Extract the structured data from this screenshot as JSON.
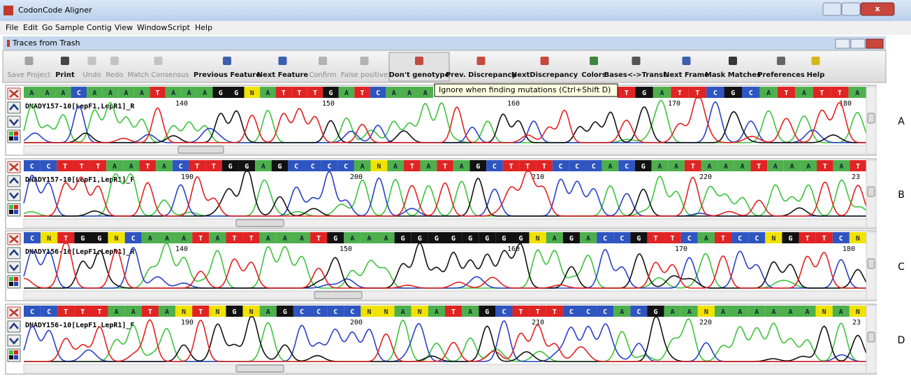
{
  "window": {
    "title": "CodonCode Aligner"
  },
  "menu": [
    "File",
    "Edit",
    "Go",
    "Sample",
    "Contig",
    "View",
    "Window",
    "Script",
    "Help"
  ],
  "document": {
    "title": "Traces from Trash"
  },
  "toolbar": [
    "Save Project",
    "Print",
    "Undo",
    "Redo",
    "Match Consensus",
    "Previous Feature",
    "Next Feature",
    "Confirm",
    "False positive",
    "Don't genotype",
    "Prev. Discrepancy",
    "NextDiscrepancy",
    "Colors",
    "Bases<->Transl.",
    "Next Frame",
    "Mask Matches",
    "Preferences",
    "Help"
  ],
  "tooltip": "Ignore when finding mutations (Ctrl+Shift D)",
  "panels": [
    {
      "letter": "A",
      "read": "DNADY157-10[LepF1,LepR1]_R",
      "bases": [
        "A",
        "A",
        "A",
        "C",
        "A",
        "A",
        "A",
        "A",
        "T",
        "A",
        "A",
        "A",
        "G",
        "G",
        "N",
        "A",
        "T",
        "T",
        "T",
        "G",
        "A",
        "T",
        "C",
        "A",
        "A",
        "A"
      ],
      "bases_right": [
        "T",
        "G",
        "A",
        "T",
        "T",
        "C",
        "G",
        "C",
        "A",
        "T",
        "A",
        "T",
        "T",
        "A"
      ],
      "positions": [
        140,
        150,
        160,
        170,
        180
      ]
    },
    {
      "letter": "B",
      "read": "DNADY157-10[LepF1,LepR1]_F",
      "bases": [
        "C",
        "C",
        "T",
        "T",
        "T",
        "A",
        "A",
        "T",
        "A",
        "C",
        "T",
        "T",
        "G",
        "G",
        "A",
        "G",
        "C",
        "C",
        "C",
        "C",
        "A",
        "N",
        "A",
        "T",
        "A",
        "T",
        "A",
        "G",
        "C",
        "T",
        "T",
        "T",
        "C",
        "C",
        "C",
        "A",
        "C",
        "G",
        "A",
        "A",
        "T",
        "A",
        "A",
        "A",
        "T",
        "A",
        "A",
        "A",
        "T",
        "A",
        "T"
      ],
      "positions": [
        190,
        200,
        210,
        220,
        23
      ]
    },
    {
      "letter": "C",
      "read": "DNADY156-10[LepF1,LepR1]_R",
      "bases": [
        "C",
        "N",
        "T",
        "G",
        "G",
        "N",
        "C",
        "A",
        "A",
        "A",
        "T",
        "A",
        "T",
        "T",
        "A",
        "A",
        "A",
        "T",
        "G",
        "A",
        "A",
        "A",
        "G",
        "G",
        "G",
        "G",
        "G",
        "G",
        "G",
        "G",
        "N",
        "A",
        "G",
        "A",
        "C",
        "C",
        "G",
        "T",
        "T",
        "C",
        "A",
        "T",
        "C",
        "C",
        "N",
        "G",
        "T",
        "T",
        "C",
        "N"
      ],
      "positions": [
        140,
        150,
        160,
        170,
        180
      ]
    },
    {
      "letter": "D",
      "read": "DNADY156-10[LepF1,LepR1]_F",
      "bases": [
        "C",
        "C",
        "T",
        "T",
        "T",
        "A",
        "A",
        "T",
        "A",
        "N",
        "T",
        "N",
        "G",
        "N",
        "A",
        "G",
        "C",
        "C",
        "C",
        "C",
        "N",
        "N",
        "A",
        "N",
        "A",
        "T",
        "A",
        "G",
        "C",
        "T",
        "T",
        "T",
        "C",
        "C",
        "C",
        "A",
        "C",
        "G",
        "A",
        "A",
        "N",
        "A",
        "A",
        "A",
        "A",
        "A",
        "A",
        "N",
        "A",
        "N"
      ],
      "positions": [
        190,
        200,
        210,
        220,
        23
      ]
    }
  ]
}
